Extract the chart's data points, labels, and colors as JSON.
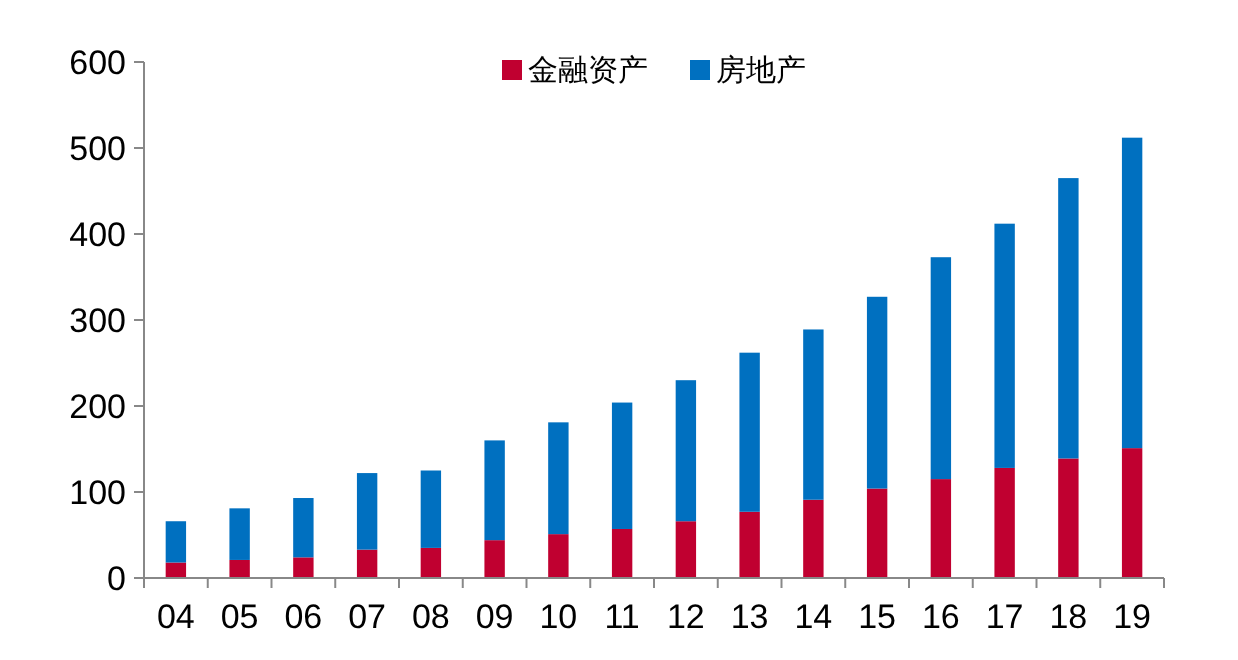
{
  "chart_data": {
    "type": "bar",
    "stacked": true,
    "categories": [
      "04",
      "05",
      "06",
      "07",
      "08",
      "09",
      "10",
      "11",
      "12",
      "13",
      "14",
      "15",
      "16",
      "17",
      "18",
      "19"
    ],
    "series": [
      {
        "name": "金融资产",
        "color": "#c00030",
        "values": [
          18,
          21,
          24,
          33,
          35,
          44,
          51,
          57,
          66,
          77,
          91,
          104,
          115,
          128,
          139,
          151
        ]
      },
      {
        "name": "房地产",
        "color": "#0070c0",
        "values": [
          48,
          60,
          69,
          89,
          90,
          116,
          130,
          147,
          164,
          185,
          198,
          223,
          258,
          284,
          326,
          361
        ]
      }
    ],
    "ylim": [
      0,
      600
    ],
    "yticks": [
      0,
      100,
      200,
      300,
      400,
      500,
      600
    ],
    "grid": false,
    "legend": "top"
  }
}
